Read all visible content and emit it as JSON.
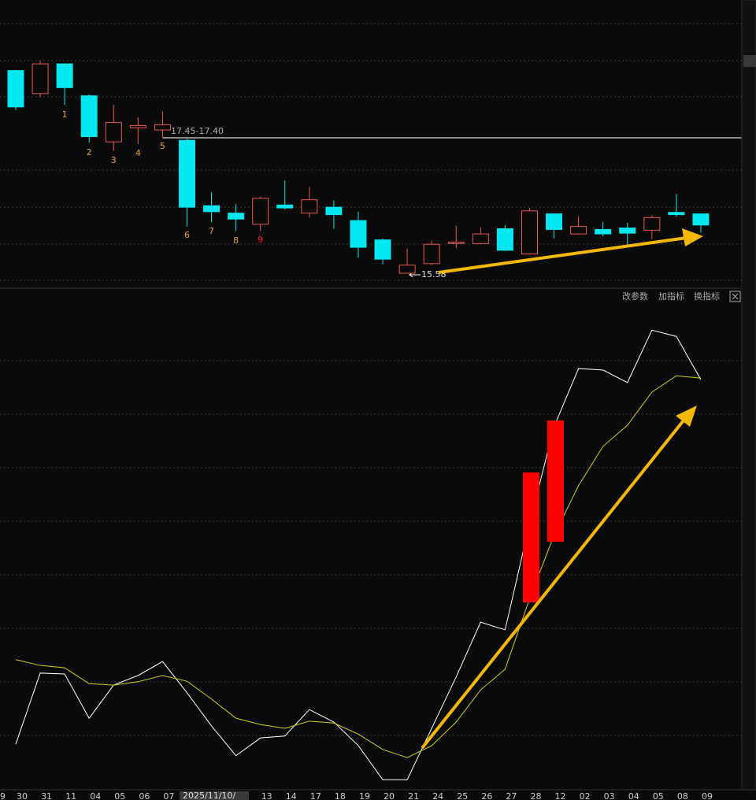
{
  "chart_data": [
    {
      "type": "candlestick",
      "categories": [
        "30",
        "31",
        "11",
        "04",
        "05",
        "06",
        "07",
        null,
        null,
        null,
        "13",
        "14",
        "17",
        "18",
        "19",
        "20",
        "21",
        "24",
        "25",
        "26",
        "27",
        "28",
        "12",
        "02",
        "03",
        "04",
        "05",
        "08",
        "09"
      ],
      "x_edge_label": "9",
      "cursor_date": "2025/11/10/",
      "open": [
        18.31,
        18.0,
        18.4,
        17.97,
        17.35,
        17.54,
        17.51,
        17.37,
        16.49,
        16.39,
        16.24,
        16.5,
        16.39,
        16.47,
        16.29,
        16.03,
        15.58,
        15.71,
        15.98,
        15.98,
        16.18,
        15.84,
        16.38,
        16.11,
        16.17,
        16.19,
        16.16,
        16.4,
        16.38
      ],
      "high": [
        18.32,
        18.44,
        18.4,
        17.99,
        17.85,
        17.68,
        17.76,
        17.39,
        16.67,
        16.51,
        16.61,
        16.83,
        16.74,
        16.56,
        16.41,
        16.05,
        15.91,
        16.02,
        16.22,
        16.2,
        16.23,
        16.46,
        16.38,
        16.35,
        16.27,
        16.26,
        16.36,
        16.65,
        16.38
      ],
      "low": [
        17.78,
        17.95,
        17.85,
        17.34,
        17.23,
        17.32,
        17.4,
        16.21,
        16.27,
        16.15,
        16.15,
        16.44,
        16.33,
        16.18,
        15.79,
        15.7,
        15.58,
        15.69,
        15.92,
        15.98,
        15.88,
        15.83,
        16.05,
        16.1,
        16.08,
        15.96,
        16.04,
        16.34,
        16.13
      ],
      "close": [
        17.82,
        18.4,
        18.08,
        17.42,
        17.61,
        17.57,
        17.58,
        16.47,
        16.41,
        16.31,
        16.59,
        16.46,
        16.57,
        16.37,
        15.93,
        15.77,
        15.69,
        15.97,
        16.0,
        16.11,
        15.89,
        16.42,
        16.17,
        16.21,
        16.11,
        16.12,
        16.33,
        16.37,
        16.23
      ],
      "up_color": "#e8584e",
      "down_color": "#00e8f0",
      "ylim": [
        15.39,
        19.26
      ],
      "annotations": [
        "1",
        "2",
        "3",
        "4",
        "5",
        "6",
        "7",
        "8",
        "9"
      ],
      "level_label": "17.45-17.40",
      "low_label": "15.58"
    },
    {
      "type": "line",
      "toolbar": [
        "改参数",
        "加指标",
        "换指标"
      ],
      "ylim": [
        0,
        100
      ],
      "series": [
        {
          "color": "#ffffff",
          "values": [
            9.0,
            23.8,
            23.6,
            14.4,
            21.3,
            23.3,
            26.2,
            19.7,
            12.8,
            6.6,
            10.3,
            10.7,
            16.2,
            13.6,
            8.7,
            1.6,
            1.6,
            12.3,
            23.0,
            34.4,
            32.8,
            54.9,
            75.1,
            87.2,
            86.9,
            84.3,
            95.2,
            93.9,
            84.9
          ]
        },
        {
          "color": "#d8cc10",
          "values": [
            26.6,
            25.4,
            24.9,
            21.6,
            21.3,
            22.0,
            23.3,
            22.1,
            18.4,
            14.4,
            13.1,
            12.3,
            13.8,
            13.4,
            11.1,
            7.9,
            6.2,
            8.7,
            13.6,
            20.3,
            24.6,
            39.3,
            52.5,
            62.8,
            71.0,
            75.4,
            82.3,
            85.7,
            85.2
          ]
        }
      ]
    }
  ]
}
